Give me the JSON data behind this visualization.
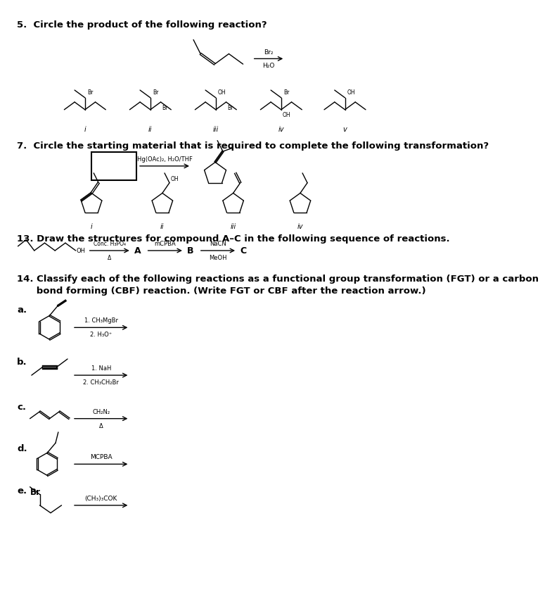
{
  "bg_color": "#ffffff",
  "page_width": 8.42,
  "page_height": 11.02,
  "q5_title": "5.  Circle the product of the following reaction?",
  "q7_title": "7.  Circle the starting material that is required to complete the following transformation?",
  "q13_title": "13. Draw the structures for compound A–C in the following sequence of reactions.",
  "q14_title": "14. Classify each of the following reactions as a functional group transformation (FGT) or a carbon",
  "q14_title2": "      bond forming (CBF) reaction. (Write FGT or CBF after the reaction arrow.)"
}
